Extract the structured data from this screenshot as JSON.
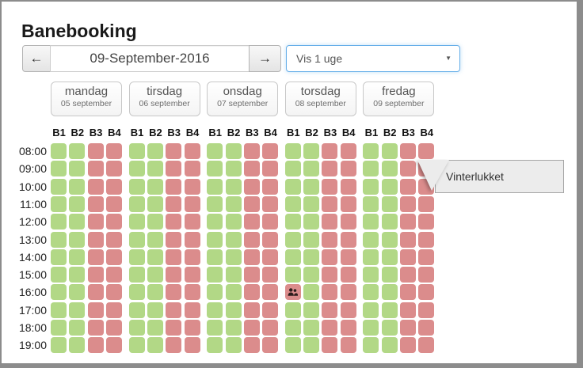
{
  "window": {
    "title": "Banebooking"
  },
  "nav": {
    "prev_icon": "←",
    "next_icon": "→",
    "date_value": "09-September-2016",
    "view_select_value": "Vis 1 uge",
    "caret_icon": "▼"
  },
  "week": {
    "days": [
      {
        "name": "mandag",
        "date": "05 september"
      },
      {
        "name": "tirsdag",
        "date": "06 september"
      },
      {
        "name": "onsdag",
        "date": "07 september"
      },
      {
        "name": "torsdag",
        "date": "08 september"
      },
      {
        "name": "fredag",
        "date": "09 september"
      }
    ],
    "courts": [
      "B1",
      "B2",
      "B3",
      "B4"
    ],
    "times": [
      "08:00",
      "09:00",
      "10:00",
      "11:00",
      "12:00",
      "13:00",
      "14:00",
      "15:00",
      "16:00",
      "17:00",
      "18:00",
      "19:00"
    ],
    "default_availability": [
      "available",
      "available",
      "closed",
      "closed"
    ],
    "special_cells": [
      {
        "day_index": 3,
        "time": "16:00",
        "court": "B1",
        "status": "booked",
        "icon": "users-icon"
      }
    ]
  },
  "tooltip": {
    "text": "Vinterlukket"
  },
  "colors": {
    "available": "#b2d886",
    "closed": "#db8c8c",
    "booked": "#db8c8c",
    "booked_icon": "#2e1d1d",
    "select_focus_border": "#66afe9"
  }
}
